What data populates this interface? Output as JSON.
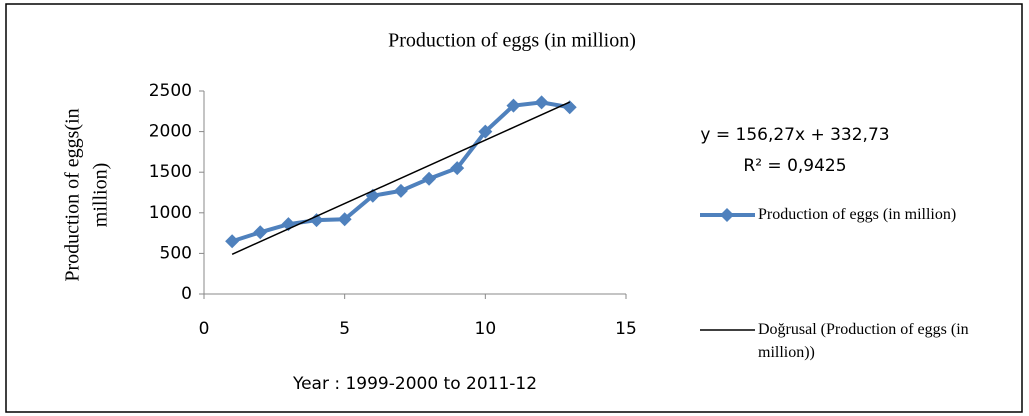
{
  "chart_data": {
    "type": "line",
    "title": "Production of eggs (in million)",
    "x_label": "Year : 1999-2000  to 2011-12",
    "y_label": [
      "Production of eggs(in",
      "million)"
    ],
    "annotations": [
      "y = 156,27x + 332,73",
      "R² = 0,9425"
    ],
    "series": [
      {
        "name": "Production of eggs (in million)",
        "color": "#4f81bd",
        "marker": "diamond",
        "x": [
          1,
          2,
          3,
          4,
          5,
          6,
          7,
          8,
          9,
          10,
          11,
          12,
          13
        ],
        "values": [
          650,
          760,
          860,
          910,
          920,
          1210,
          1270,
          1420,
          1550,
          2000,
          2320,
          2360,
          2300
        ]
      },
      {
        "name": "Doğrusal (Production of eggs (in million))",
        "color": "#000000",
        "x": [
          1,
          13
        ],
        "values": [
          489,
          2364
        ]
      }
    ],
    "xlim": [
      0,
      15
    ],
    "xticks": [
      0,
      5,
      10,
      15
    ],
    "ylim": [
      0,
      2500
    ],
    "yticks": [
      0,
      500,
      1000,
      1500,
      2000,
      2500
    ]
  }
}
